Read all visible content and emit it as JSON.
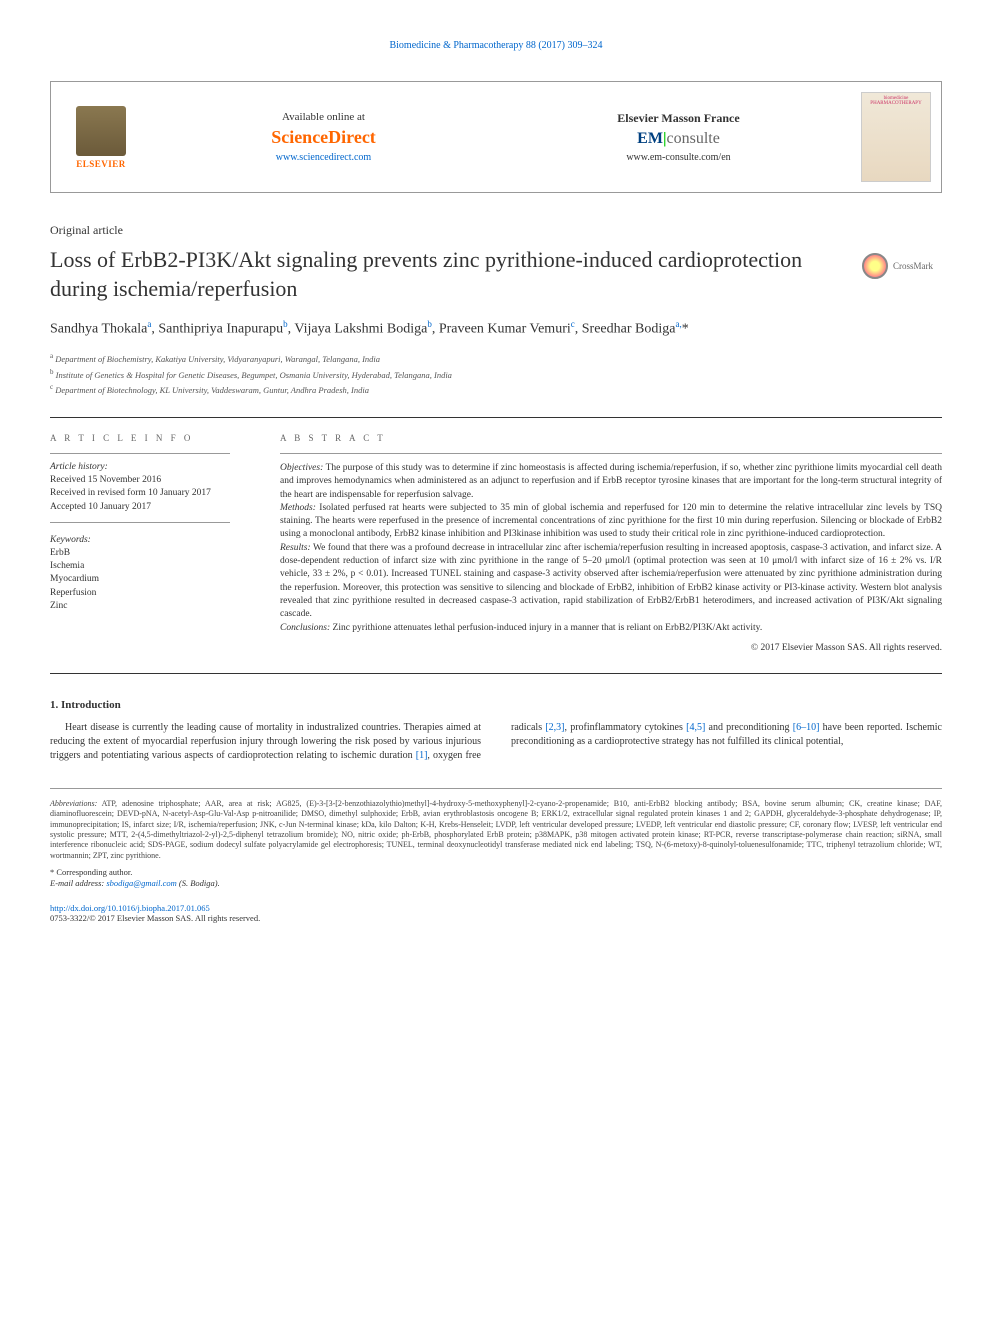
{
  "top_link": "Biomedicine & Pharmacotherapy 88 (2017) 309–324",
  "header": {
    "elsevier": "ELSEVIER",
    "avail": "Available online at",
    "sd": "ScienceDirect",
    "sd_url": "www.sciencedirect.com",
    "em_title": "Elsevier Masson France",
    "em_brand_em": "EM",
    "em_brand_consulte": "consulte",
    "em_url": "www.em-consulte.com/en",
    "journal": "biomedicine PHARMACOTHERAPY"
  },
  "article_type": "Original article",
  "title": "Loss of ErbB2-PI3K/Akt signaling prevents zinc pyrithione-induced cardioprotection during ischemia/reperfusion",
  "crossmark": "CrossMark",
  "authors_html": "Sandhya Thokala<sup>a</sup>, Santhipriya Inapurapu<sup>b</sup>, Vijaya Lakshmi Bodiga<sup>b</sup>, Praveen Kumar Vemuri<sup>c</sup>, Sreedhar Bodiga<sup>a,</sup><span class='star'>*</span>",
  "affiliations": [
    {
      "sup": "a",
      "text": "Department of Biochemistry, Kakatiya University, Vidyaranyapuri, Warangal, Telangana, India"
    },
    {
      "sup": "b",
      "text": "Institute of Genetics & Hospital for Genetic Diseases, Begumpet, Osmania University, Hyderabad, Telangana, India"
    },
    {
      "sup": "c",
      "text": "Department of Biotechnology, KL University, Vaddeswaram, Guntur, Andhra Pradesh, India"
    }
  ],
  "info": {
    "head": "A R T I C L E   I N F O",
    "history_label": "Article history:",
    "history": [
      "Received 15 November 2016",
      "Received in revised form 10 January 2017",
      "Accepted 10 January 2017"
    ],
    "keywords_label": "Keywords:",
    "keywords": [
      "ErbB",
      "Ischemia",
      "Myocardium",
      "Reperfusion",
      "Zinc"
    ]
  },
  "abstract": {
    "head": "A B S T R A C T",
    "objectives_label": "Objectives:",
    "objectives": " The purpose of this study was to determine if zinc homeostasis is affected during ischemia/reperfusion, if so, whether zinc pyrithione limits myocardial cell death and improves hemodynamics when administered as an adjunct to reperfusion and if ErbB receptor tyrosine kinases that are important for the long-term structural integrity of the heart are indispensable for reperfusion salvage.",
    "methods_label": "Methods:",
    "methods": " Isolated perfused rat hearts were subjected to 35 min of global ischemia and reperfused for 120 min to determine the relative intracellular zinc levels by TSQ staining. The hearts were reperfused in the presence of incremental concentrations of zinc pyrithione for the first 10 min during reperfusion. Silencing or blockade of ErbB2 using a monoclonal antibody, ErbB2 kinase inhibition and PI3kinase inhibition was used to study their critical role in zinc pyrithione-induced cardioprotection.",
    "results_label": "Results:",
    "results": " We found that there was a profound decrease in intracellular zinc after ischemia/reperfusion resulting in increased apoptosis, caspase-3 activation, and infarct size. A dose-dependent reduction of infarct size with zinc pyrithione in the range of 5–20 μmol/l (optimal protection was seen at 10 μmol/l with infarct size of 16 ± 2% vs. I/R vehicle, 33 ± 2%, p < 0.01). Increased TUNEL staining and caspase-3 activity observed after ischemia/reperfusion were attenuated by zinc pyrithione administration during the reperfusion. Moreover, this protection was sensitive to silencing and blockade of ErbB2, inhibition of ErbB2 kinase activity or PI3-kinase activity. Western blot analysis revealed that zinc pyrithione resulted in decreased caspase-3 activation, rapid stabilization of ErbB2/ErbB1 heterodimers, and increased activation of PI3K/Akt signaling cascade.",
    "conclusions_label": "Conclusions:",
    "conclusions": " Zinc pyrithione attenuates lethal perfusion-induced injury in a manner that is reliant on ErbB2/PI3K/Akt activity.",
    "copyright": "© 2017 Elsevier Masson SAS. All rights reserved."
  },
  "intro": {
    "head": "1. Introduction",
    "p1": "Heart disease is currently the leading cause of mortality in industralized countries. Therapies aimed at reducing the extent of myocardial reperfusion injury through lowering the risk posed by",
    "p2_pre": "various injurious triggers and potentiating various aspects of cardioprotection relating to ischemic duration ",
    "r1": "[1]",
    "p2_mid1": ", oxygen free radicals ",
    "r2": "[2,3]",
    "p2_mid2": ", profinflammatory cytokines ",
    "r3": "[4,5]",
    "p2_mid3": " and preconditioning ",
    "r4": "[6–10]",
    "p2_end": " have been reported. Ischemic preconditioning as a cardioprotective strategy has not fulfilled its clinical potential,"
  },
  "footer": {
    "abbrev_label": "Abbreviations:",
    "abbrev": " ATP, adenosine triphosphate; AAR, area at risk; AG825, (E)-3-[3-[2-benzothiazolythio)methyl]-4-hydroxy-5-methoxyphenyl]-2-cyano-2-propenamide; B10, anti-ErbB2 blocking antibody; BSA, bovine serum albumin; CK, creatine kinase; DAF, diaminofluorescein; DEVD-pNA, N-acetyl-Asp-Glu-Val-Asp p-nitroanilide; DMSO, dimethyl sulphoxide; ErbB, avian erythroblastosis oncogene B; ERK1/2, extracellular signal regulated protein kinases 1 and 2; GAPDH, glyceraldehyde-3-phosphate dehydrogenase; IP, immunoprecipitation; IS, infarct size; I/R, ischemia/reperfusion; JNK, c-Jun N-terminal kinase; kDa, kilo Dalton; K-H, Krebs-Henseleit; LVDP, left ventricular developed pressure; LVEDP, left ventricular end diastolic pressure; CF, coronary flow; LVESP, left ventricular end systolic pressure; MTT, 2-(4,5-dimethyltriazol-2-yl)-2,5-diphenyl tetrazolium bromide); NO, nitric oxide; ph-ErbB, phosphorylated ErbB protein; p38MAPK, p38 mitogen activated protein kinase; RT-PCR, reverse transcriptase-polymerase chain reaction; siRNA, small interference ribonucleic acid; SDS-PAGE, sodium dodecyl sulfate polyacrylamide gel electrophoresis; TUNEL, terminal deoxynucleotidyl transferase mediated nick end labeling; TSQ, N-(6-metoxy)-8-quinolyl-toluenesulfonamide; TTC, triphenyl tetrazolium chloride; WT, wortmannin; ZPT, zinc pyrithione.",
    "corresp": "* Corresponding author.",
    "email_label": "E-mail address:",
    "email": "sbodiga@gmail.com",
    "email_tail": " (S. Bodiga).",
    "doi": "http://dx.doi.org/10.1016/j.biopha.2017.01.065",
    "copy": "0753-3322/© 2017 Elsevier Masson SAS. All rights reserved."
  }
}
